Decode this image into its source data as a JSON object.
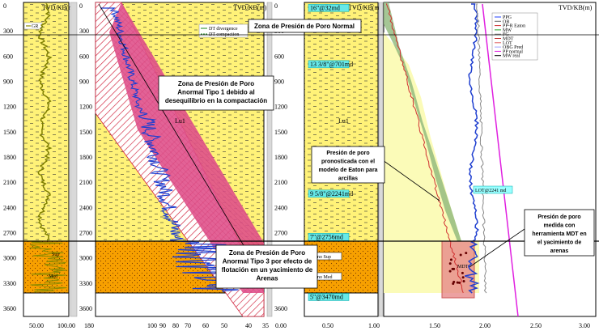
{
  "panels": {
    "gr": {
      "header": "TVD/KB(m)",
      "legend": "GR",
      "xticks": [
        "50.00",
        "100.00"
      ]
    },
    "dt": {
      "header": "TVD/KB(m)",
      "legend1": "DT divergence",
      "legend2": "DT compaction",
      "xticks": [
        "180",
        "100",
        "90",
        "80",
        "70",
        "60",
        "50",
        "40",
        "35"
      ]
    },
    "lith": {
      "header": "TVD/KB(m)",
      "xticks": [
        "0.00",
        "0.50",
        "1.00"
      ]
    },
    "pres": {
      "header": "TVD/KB(m)",
      "xticks": [
        "1.50",
        "2.00",
        "2.50",
        "3.00"
      ]
    }
  },
  "depth_ticks": [
    "0",
    "300",
    "600",
    "900",
    "1200",
    "1500",
    "1800",
    "2100",
    "2400",
    "2700",
    "3000",
    "3300",
    "3600"
  ],
  "casing_labels": [
    "16\"@32md",
    "13 3/8\"@701md",
    "9 5/8\"@2241md",
    "7\"@2756md",
    "5\"@3470md"
  ],
  "formation_labels": {
    "eoceno_sup": "Eoceno Sup",
    "eoceno_med": "Eoceno Med",
    "lu1": "Lu1",
    "lu2": "Lu1",
    "med": "Med",
    "sup": "Sup",
    "mdt_label": "MDT",
    "lot_label": "LOT@2241 md"
  },
  "pressure_legend": [
    "PPG",
    "OB",
    "PP-R Eaton",
    "MW",
    "FG",
    "MDT",
    "LOT",
    "OBG Pred",
    "PP normal",
    "MW real"
  ],
  "annotations": {
    "zona_normal": "Zona de Presión de Poro Normal",
    "tipo1": [
      "Zona de Presión de Poro",
      "Anormal Tipo 1 debido al",
      "desequilibrio en la compactación"
    ],
    "tipo3": [
      "Zona de Presión de Poro",
      "Anormal Tipo 3 por efecto de",
      "flotación en un yacimiento de",
      "Arenas"
    ],
    "eaton": [
      "Presión de poro",
      "pronosticada con el",
      "modelo de Eaton para",
      "arcillas"
    ],
    "mdt": [
      "Presión de poro",
      "medida con",
      "herramienta MDT en",
      "el yacimiento de",
      "arenas"
    ]
  },
  "colors": {
    "yellow": "#fff278",
    "orange": "#f7a000",
    "magenta": "#e0508a",
    "blue": "#1f3fd0",
    "green": "#3b8a3b"
  }
}
